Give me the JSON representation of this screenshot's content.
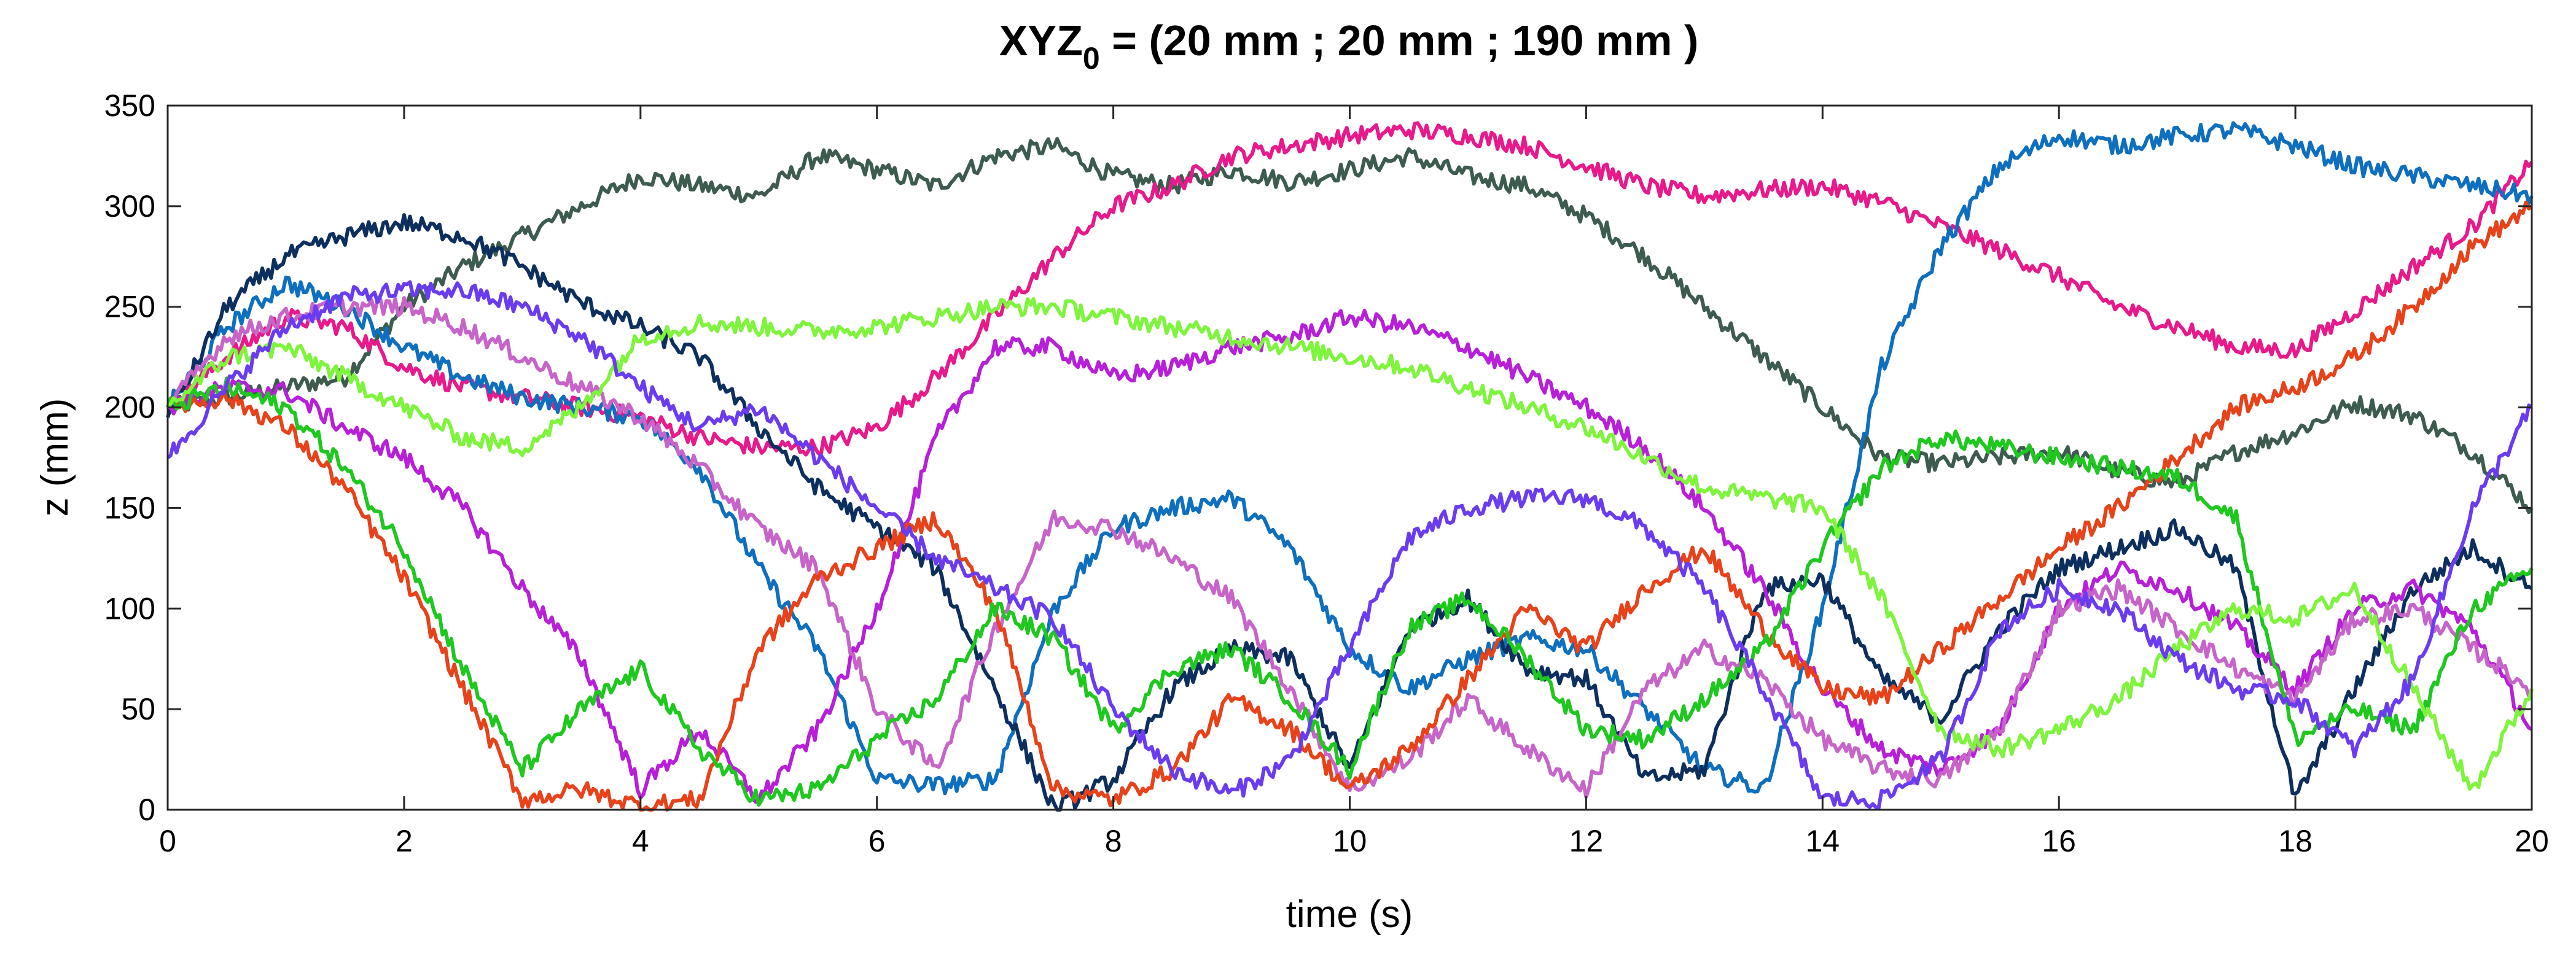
{
  "chart_data": {
    "type": "line",
    "title_main": "XYZ",
    "title_sub": "0",
    "title_rest": " = (20 mm ; 20 mm ; 190 mm )",
    "xlabel": "time (s)",
    "ylabel": "z (mm)",
    "xlim": [
      0,
      20
    ],
    "ylim": [
      0,
      350
    ],
    "xticks": [
      0,
      2,
      4,
      6,
      8,
      10,
      12,
      14,
      16,
      18,
      20
    ],
    "yticks": [
      0,
      50,
      100,
      150,
      200,
      250,
      300,
      350
    ],
    "xtick_labels": [
      "0",
      "2",
      "4",
      "6",
      "8",
      "10",
      "12",
      "14",
      "16",
      "18",
      "20"
    ],
    "ytick_labels": [
      "0",
      "50",
      "100",
      "150",
      "200",
      "250",
      "300",
      "350"
    ],
    "grid": false,
    "legend": "none",
    "series": [
      {
        "name": "dark-slate",
        "color": "#3d5c4f",
        "x": [
          0,
          0.5,
          1,
          1.5,
          2,
          2.5,
          3,
          3.5,
          4,
          4.5,
          5,
          5.5,
          6,
          6.5,
          7,
          7.5,
          8,
          8.5,
          9,
          9.5,
          10,
          10.5,
          11,
          11.5,
          12,
          12.5,
          13,
          13.5,
          14,
          14.5,
          15,
          15.5,
          16,
          16.5,
          17,
          17.5,
          18,
          18.5,
          19,
          19.5,
          20
        ],
        "y": [
          200,
          205,
          210,
          215,
          250,
          270,
          285,
          300,
          315,
          310,
          305,
          325,
          318,
          310,
          325,
          330,
          315,
          310,
          318,
          312,
          318,
          325,
          315,
          310,
          295,
          275,
          250,
          225,
          200,
          175,
          172,
          175,
          178,
          168,
          162,
          178,
          188,
          202,
          196,
          178,
          150
        ]
      },
      {
        "name": "pink",
        "color": "#e8198b",
        "x": [
          0,
          0.5,
          1,
          1.5,
          2,
          2.5,
          3,
          3.5,
          4,
          4.5,
          5,
          5.5,
          6,
          6.5,
          7,
          7.5,
          8,
          8.5,
          9,
          9.5,
          10,
          10.5,
          11,
          11.5,
          12,
          12.5,
          13,
          13.5,
          14,
          14.5,
          15,
          15.5,
          16,
          16.5,
          17,
          17.5,
          18,
          18.5,
          19,
          19.5,
          20
        ],
        "y": [
          200,
          225,
          245,
          240,
          220,
          210,
          205,
          200,
          195,
          185,
          180,
          180,
          190,
          215,
          245,
          275,
          300,
          310,
          325,
          330,
          335,
          338,
          335,
          330,
          320,
          310,
          305,
          308,
          310,
          302,
          290,
          278,
          265,
          250,
          240,
          230,
          228,
          248,
          270,
          290,
          322
        ]
      },
      {
        "name": "blue",
        "color": "#0e6fbf",
        "x": [
          0,
          0.5,
          1,
          1.5,
          2,
          2.5,
          3,
          3.5,
          4,
          4.5,
          5,
          5.5,
          6,
          6.5,
          7,
          7.5,
          8,
          8.5,
          9,
          9.5,
          10,
          10.5,
          11,
          11.5,
          12,
          12.5,
          13,
          13.5,
          14,
          14.5,
          15,
          15.5,
          16,
          16.5,
          17,
          17.5,
          18,
          18.5,
          19,
          19.5,
          20
        ],
        "y": [
          200,
          240,
          262,
          250,
          230,
          215,
          205,
          200,
          195,
          170,
          120,
          80,
          15,
          12,
          15,
          100,
          140,
          150,
          155,
          130,
          80,
          60,
          75,
          85,
          80,
          50,
          20,
          10,
          100,
          220,
          280,
          320,
          335,
          330,
          335,
          338,
          330,
          320,
          315,
          310,
          305
        ]
      },
      {
        "name": "navy",
        "color": "#0d2f5e",
        "x": [
          0,
          0.5,
          1,
          1.5,
          2,
          2.5,
          3,
          3.5,
          4,
          4.5,
          5,
          5.5,
          6,
          6.5,
          7,
          7.5,
          8,
          8.5,
          9,
          9.5,
          10,
          10.5,
          11,
          11.5,
          12,
          12.5,
          13,
          13.5,
          14,
          14.5,
          15,
          15.5,
          16,
          16.5,
          17,
          17.5,
          18,
          18.5,
          19,
          19.5,
          20
        ],
        "y": [
          195,
          250,
          275,
          285,
          292,
          285,
          270,
          252,
          240,
          225,
          190,
          160,
          140,
          120,
          60,
          0,
          15,
          60,
          80,
          75,
          20,
          90,
          105,
          70,
          65,
          15,
          20,
          110,
          115,
          65,
          45,
          90,
          120,
          130,
          140,
          120,
          5,
          60,
          110,
          130,
          110
        ]
      },
      {
        "name": "violet-1",
        "color": "#b71fd8",
        "x": [
          0,
          0.5,
          1,
          1.5,
          2,
          2.5,
          3,
          3.5,
          4,
          4.5,
          5,
          5.5,
          6,
          6.5,
          7,
          7.5,
          8,
          8.5,
          9,
          9.5,
          10,
          10.5,
          11,
          11.5,
          12,
          12.5,
          13,
          13.5,
          14,
          14.5,
          15,
          15.5,
          16,
          16.5,
          17,
          17.5,
          18,
          18.5,
          19,
          19.5,
          20
        ],
        "y": [
          200,
          210,
          208,
          190,
          175,
          150,
          110,
          75,
          10,
          40,
          5,
          40,
          100,
          185,
          230,
          230,
          215,
          220,
          230,
          235,
          245,
          240,
          230,
          215,
          200,
          180,
          150,
          110,
          60,
          30,
          20,
          40,
          100,
          120,
          110,
          90,
          60,
          100,
          110,
          90,
          40
        ]
      },
      {
        "name": "light-orchid",
        "color": "#c764c9",
        "x": [
          0,
          0.5,
          1,
          1.5,
          2,
          2.5,
          3,
          3.5,
          4,
          4.5,
          5,
          5.5,
          6,
          6.5,
          7,
          7.5,
          8,
          8.5,
          9,
          9.5,
          10,
          10.5,
          11,
          11.5,
          12,
          12.5,
          13,
          13.5,
          14,
          14.5,
          15,
          15.5,
          16,
          16.5,
          17,
          17.5,
          18,
          18.5,
          19,
          19.5,
          20
        ],
        "y": [
          200,
          235,
          245,
          250,
          250,
          240,
          225,
          210,
          195,
          170,
          140,
          120,
          50,
          20,
          90,
          145,
          140,
          125,
          105,
          60,
          10,
          25,
          55,
          30,
          10,
          60,
          80,
          65,
          35,
          20,
          15,
          40,
          100,
          110,
          90,
          70,
          55,
          95,
          100,
          80,
          60
        ]
      },
      {
        "name": "red-orange",
        "color": "#e8421a",
        "x": [
          0,
          0.5,
          1,
          1.5,
          2,
          2.5,
          3,
          3.5,
          4,
          4.5,
          5,
          5.5,
          6,
          6.5,
          7,
          7.5,
          8,
          8.5,
          9,
          9.5,
          10,
          10.5,
          11,
          11.5,
          12,
          12.5,
          13,
          13.5,
          14,
          14.5,
          15,
          15.5,
          16,
          16.5,
          17,
          17.5,
          18,
          18.5,
          19,
          19.5,
          20
        ],
        "y": [
          200,
          205,
          190,
          160,
          115,
          60,
          5,
          10,
          2,
          5,
          80,
          115,
          130,
          145,
          100,
          10,
          5,
          20,
          55,
          40,
          10,
          30,
          65,
          100,
          80,
          110,
          130,
          90,
          60,
          55,
          80,
          105,
          130,
          150,
          175,
          200,
          210,
          225,
          250,
          280,
          300
        ]
      },
      {
        "name": "green",
        "color": "#1ec81e",
        "x": [
          0,
          0.5,
          1,
          1.5,
          2,
          2.5,
          3,
          3.5,
          4,
          4.5,
          5,
          5.5,
          6,
          6.5,
          7,
          7.5,
          8,
          8.5,
          9,
          9.5,
          10,
          10.5,
          11,
          11.5,
          12,
          12.5,
          13,
          13.5,
          14,
          14.5,
          15,
          15.5,
          16,
          16.5,
          17,
          17.5,
          18,
          18.5,
          19,
          19.5,
          20
        ],
        "y": [
          200,
          210,
          200,
          170,
          130,
          70,
          20,
          50,
          70,
          30,
          5,
          10,
          35,
          55,
          100,
          85,
          40,
          70,
          80,
          55,
          20,
          90,
          105,
          75,
          40,
          35,
          55,
          80,
          130,
          170,
          185,
          180,
          175,
          170,
          165,
          145,
          35,
          50,
          40,
          100,
          120
        ]
      },
      {
        "name": "light-green",
        "color": "#7ef43c",
        "x": [
          0,
          0.5,
          1,
          1.5,
          2,
          2.5,
          3,
          3.5,
          4,
          4.5,
          5,
          5.5,
          6,
          6.5,
          7,
          7.5,
          8,
          8.5,
          9,
          9.5,
          10,
          10.5,
          11,
          11.5,
          12,
          12.5,
          13,
          13.5,
          14,
          14.5,
          15,
          15.5,
          16,
          16.5,
          17,
          17.5,
          18,
          18.5,
          19,
          19.5,
          20
        ],
        "y": [
          200,
          225,
          230,
          215,
          200,
          185,
          180,
          200,
          235,
          242,
          240,
          238,
          240,
          245,
          250,
          250,
          245,
          240,
          235,
          230,
          225,
          220,
          210,
          200,
          190,
          175,
          160,
          155,
          150,
          105,
          40,
          30,
          40,
          55,
          80,
          100,
          95,
          110,
          60,
          10,
          60
        ]
      },
      {
        "name": "indigo",
        "color": "#6a3cf0",
        "x": [
          0,
          0.5,
          1,
          1.5,
          2,
          2.5,
          3,
          3.5,
          4,
          4.5,
          5,
          5.5,
          6,
          6.5,
          7,
          7.5,
          8,
          8.5,
          9,
          9.5,
          10,
          10.5,
          11,
          11.5,
          12,
          12.5,
          13,
          13.5,
          14,
          14.5,
          15,
          15.5,
          16,
          16.5,
          17,
          17.5,
          18,
          18.5,
          19,
          19.5,
          20
        ],
        "y": [
          175,
          210,
          240,
          255,
          258,
          258,
          250,
          235,
          210,
          190,
          200,
          175,
          150,
          125,
          110,
          95,
          50,
          20,
          8,
          25,
          80,
          135,
          150,
          155,
          155,
          140,
          110,
          60,
          5,
          5,
          25,
          90,
          110,
          100,
          75,
          60,
          55,
          30,
          65,
          150,
          200
        ]
      }
    ]
  }
}
